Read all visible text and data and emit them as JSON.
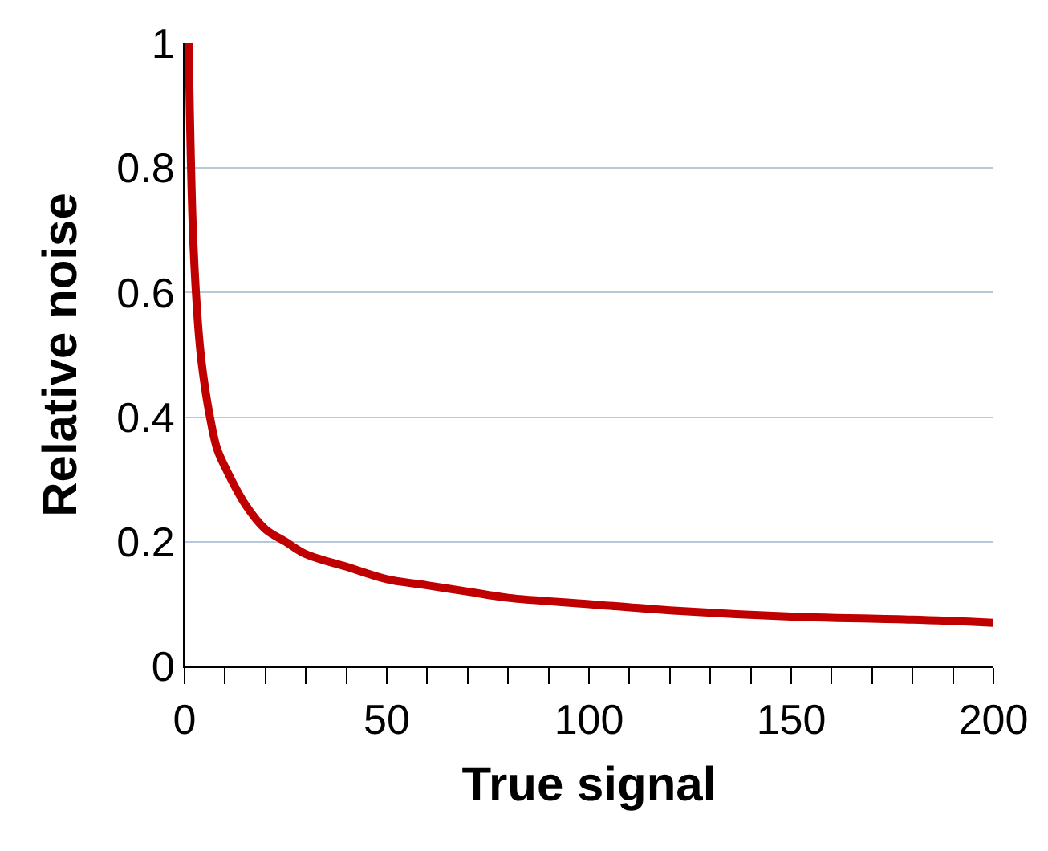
{
  "chart_data": {
    "type": "line",
    "xlabel": "True signal",
    "ylabel": "Relative noise",
    "series": [
      {
        "color": "#c00000",
        "x": [
          1,
          2,
          3,
          4,
          5,
          6,
          8,
          10,
          15,
          20,
          25,
          30,
          40,
          50,
          60,
          70,
          80,
          100,
          120,
          150,
          180,
          200
        ],
        "values": [
          1,
          0.71,
          0.58,
          0.5,
          0.45,
          0.41,
          0.35,
          0.32,
          0.26,
          0.22,
          0.2,
          0.18,
          0.16,
          0.14,
          0.13,
          0.12,
          0.11,
          0.1,
          0.09,
          0.08,
          0.075,
          0.07
        ]
      }
    ],
    "xlim": [
      0,
      200
    ],
    "xticks": [
      0,
      {
        "value": 10,
        "label": null
      },
      {
        "value": 20,
        "label": null
      },
      {
        "value": 30,
        "label": null
      },
      {
        "value": 40,
        "label": null
      },
      50,
      {
        "value": 60,
        "label": null
      },
      {
        "value": 70,
        "label": null
      },
      {
        "value": 80,
        "label": null
      },
      {
        "value": 90,
        "label": null
      },
      100,
      {
        "value": 110,
        "label": null
      },
      {
        "value": 120,
        "label": null
      },
      {
        "value": 130,
        "label": null
      },
      {
        "value": 140,
        "label": null
      },
      150,
      {
        "value": 160,
        "label": null
      },
      {
        "value": 170,
        "label": null
      },
      {
        "value": 180,
        "label": null
      },
      {
        "value": 190,
        "label": null
      },
      200
    ],
    "ylim": [
      0,
      1
    ],
    "yticks": [
      0,
      0.2,
      0.4,
      0.6,
      0.8,
      1
    ],
    "grid": "y",
    "marker": "none",
    "line_style": "solid"
  }
}
